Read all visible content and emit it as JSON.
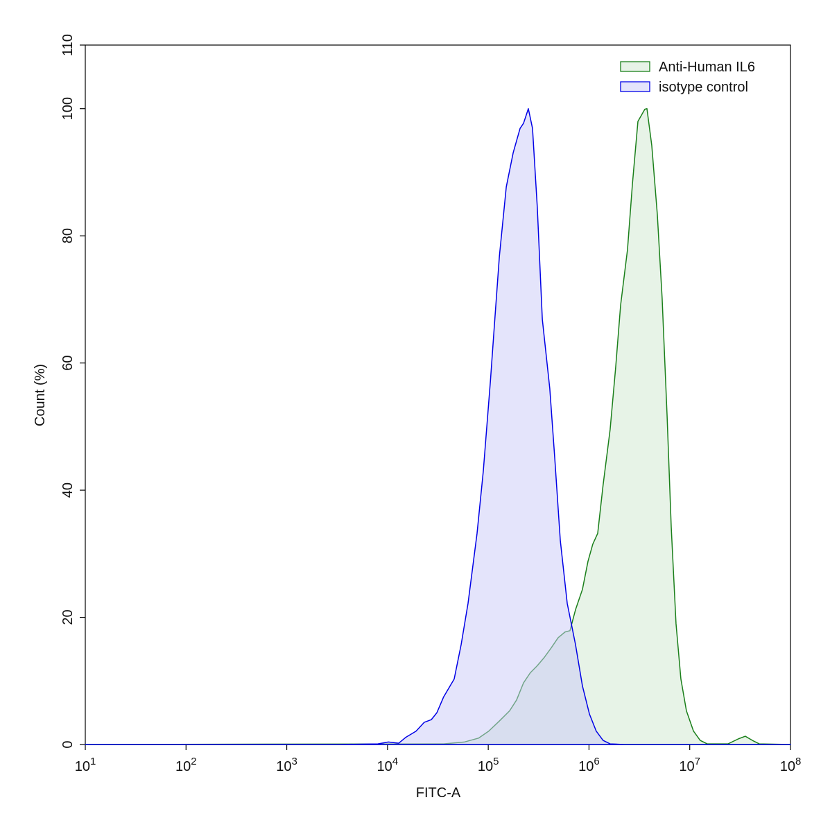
{
  "chart_data": {
    "type": "area",
    "x_label": "FITC-A",
    "y_label": "Count  (%)",
    "xscale": "log",
    "xlim": [
      10,
      100000000
    ],
    "xticks": [
      {
        "value": 10,
        "label": "10",
        "exponent": "1"
      },
      {
        "value": 100,
        "label": "10",
        "exponent": "2"
      },
      {
        "value": 1000,
        "label": "10",
        "exponent": "3"
      },
      {
        "value": 10000,
        "label": "10",
        "exponent": "4"
      },
      {
        "value": 100000,
        "label": "10",
        "exponent": "5"
      },
      {
        "value": 1000000,
        "label": "10",
        "exponent": "6"
      },
      {
        "value": 10000000,
        "label": "10",
        "exponent": "7"
      },
      {
        "value": 100000000,
        "label": "10",
        "exponent": "8"
      }
    ],
    "ylim": [
      0,
      110
    ],
    "yticks": [
      0,
      20,
      40,
      60,
      80,
      100,
      110
    ],
    "legend": "upper right",
    "series": [
      {
        "name": "Anti-Human IL6",
        "color": "#1a7f1a",
        "fill": "#cfe8cf",
        "x": [
          10,
          36100,
          58200,
          80000,
          101000,
          129000,
          163000,
          191000,
          224000,
          262000,
          307000,
          360000,
          422000,
          494000,
          579000,
          647000,
          735000,
          861000,
          977000,
          1090000,
          1220000,
          1380000,
          1620000,
          1840000,
          2060000,
          2410000,
          2700000,
          3060000,
          3580000,
          3760000,
          4200000,
          4770000,
          5320000,
          5960000,
          6550000,
          7310000,
          8170000,
          9270000,
          10900000,
          12700000,
          14900000,
          24000000,
          30500000,
          35600000,
          41800000,
          49000000,
          100000000
        ],
        "values": [
          0,
          0.1,
          0.4,
          1.0,
          2.1,
          3.7,
          5.3,
          7.0,
          9.7,
          11.3,
          12.4,
          13.7,
          15.2,
          16.8,
          17.7,
          17.9,
          21.2,
          24.4,
          28.8,
          31.5,
          33.2,
          40.8,
          49.5,
          59.3,
          69.1,
          77.8,
          88.2,
          98.0,
          99.9,
          100,
          94.2,
          83.3,
          70.2,
          51.7,
          34.2,
          19.0,
          10.3,
          5.3,
          2.1,
          0.65,
          0.1,
          0.1,
          0.9,
          1.3,
          0.65,
          0.1,
          0
        ]
      },
      {
        "name": "isotype control",
        "color": "#0000e6",
        "fill": "#c9c9f7",
        "x": [
          10,
          3360,
          8030,
          10200,
          12900,
          15100,
          19200,
          23200,
          27200,
          30900,
          36100,
          45900,
          53800,
          63000,
          77400,
          89300,
          105000,
          115000,
          129000,
          151000,
          177000,
          207000,
          224000,
          250000,
          275000,
          307000,
          344000,
          408000,
          457000,
          519000,
          608000,
          735000,
          861000,
          1010000,
          1180000,
          1380000,
          1620000,
          2230000,
          100000000
        ],
        "values": [
          0,
          0,
          0.1,
          0.4,
          0.2,
          1.1,
          2.1,
          3.5,
          3.9,
          5.0,
          7.5,
          10.3,
          15.7,
          22.2,
          33.2,
          43.0,
          57.1,
          65.9,
          76.8,
          87.7,
          93.1,
          96.9,
          97.7,
          100,
          96.9,
          84.4,
          66.9,
          56.0,
          45.1,
          32.1,
          22.2,
          15.7,
          9.2,
          4.8,
          2.1,
          0.65,
          0.1,
          0,
          0
        ]
      }
    ]
  }
}
